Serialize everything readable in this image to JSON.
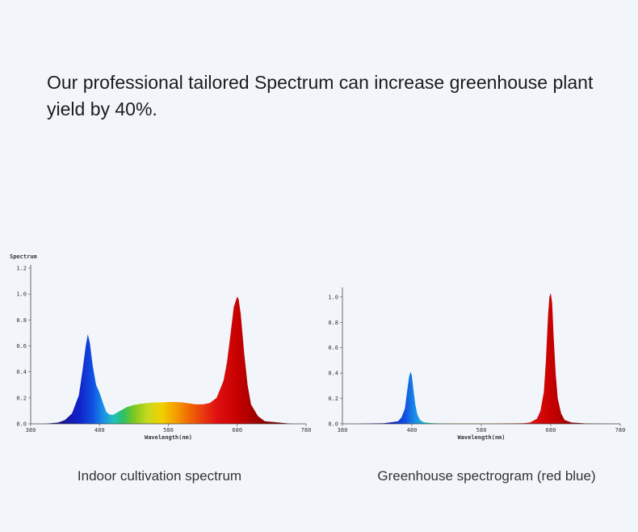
{
  "headline": "Our professional tailored Spectrum can increase greenhouse plant yield by 40%.",
  "captions": {
    "left": "Indoor cultivation spectrum",
    "right": "Greenhouse spectrogram (red blue)"
  },
  "chart_data": [
    {
      "type": "area",
      "ylabel": "Spectrum",
      "xlabel": "Wavelength(nm)",
      "xlim": [
        380,
        780
      ],
      "ylim": [
        0,
        1.2
      ],
      "x_ticks": [
        380,
        480,
        580,
        680,
        780
      ],
      "y_ticks": [
        "0.0",
        "0.2",
        "0.4",
        "0.6",
        "0.8",
        "1.0",
        "1.2"
      ],
      "series": [
        {
          "x": [
            380,
            400,
            420,
            430,
            440,
            450,
            455,
            460,
            463,
            466,
            470,
            475,
            480,
            485,
            490,
            495,
            500,
            510,
            520,
            530,
            540,
            550,
            560,
            570,
            580,
            590,
            600,
            610,
            620,
            630,
            640,
            650,
            660,
            665,
            670,
            675,
            680,
            682,
            685,
            690,
            695,
            700,
            710,
            720,
            740,
            760,
            780
          ],
          "y": [
            0.0,
            0.0,
            0.01,
            0.03,
            0.08,
            0.22,
            0.4,
            0.6,
            0.69,
            0.62,
            0.45,
            0.3,
            0.24,
            0.16,
            0.09,
            0.07,
            0.07,
            0.1,
            0.13,
            0.145,
            0.155,
            0.16,
            0.165,
            0.165,
            0.168,
            0.168,
            0.165,
            0.158,
            0.15,
            0.15,
            0.16,
            0.2,
            0.33,
            0.47,
            0.68,
            0.9,
            0.98,
            0.96,
            0.85,
            0.55,
            0.3,
            0.15,
            0.06,
            0.02,
            0.01,
            0.0,
            0.0
          ]
        }
      ]
    },
    {
      "type": "area",
      "xlabel": "Wavelength(nm)",
      "xlim": [
        380,
        780
      ],
      "ylim": [
        0,
        1.05
      ],
      "x_ticks": [
        380,
        480,
        580,
        680,
        780
      ],
      "y_ticks": [
        "0.0",
        "0.2",
        "0.4",
        "0.6",
        "0.8",
        "1.0"
      ],
      "series": [
        {
          "x": [
            380,
            400,
            420,
            440,
            460,
            465,
            470,
            473,
            476,
            478,
            480,
            482,
            485,
            488,
            492,
            496,
            500,
            510,
            520,
            560,
            600,
            640,
            650,
            660,
            665,
            670,
            673,
            676,
            678,
            680,
            682,
            684,
            687,
            690,
            695,
            700,
            710,
            730,
            780
          ],
          "y": [
            0.0,
            0.0,
            0.003,
            0.005,
            0.02,
            0.05,
            0.12,
            0.25,
            0.37,
            0.41,
            0.38,
            0.28,
            0.15,
            0.07,
            0.03,
            0.015,
            0.01,
            0.005,
            0.003,
            0.003,
            0.003,
            0.005,
            0.01,
            0.04,
            0.1,
            0.25,
            0.5,
            0.85,
            1.0,
            1.03,
            0.95,
            0.7,
            0.4,
            0.2,
            0.08,
            0.03,
            0.01,
            0.003,
            0.0
          ]
        }
      ]
    }
  ]
}
